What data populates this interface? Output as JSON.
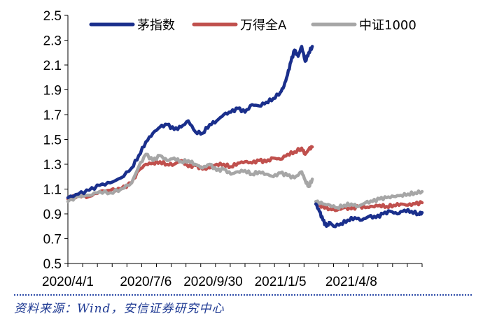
{
  "chart_data": {
    "type": "line",
    "title": "",
    "xlabel": "",
    "ylabel": "",
    "ylim": [
      0.5,
      2.5
    ],
    "yticks": [
      0.5,
      0.7,
      0.9,
      1.1,
      1.3,
      1.5,
      1.7,
      1.9,
      2.1,
      2.3,
      2.5
    ],
    "x_tick_labels": [
      "2020/4/1",
      "2020/7/6",
      "2020/9/30",
      "2021/1/5",
      "2021/4/8"
    ],
    "x_tick_positions": [
      0,
      0.22,
      0.41,
      0.6,
      0.8
    ],
    "legend_position": "top",
    "grid": false,
    "series": [
      {
        "name": "茅指数",
        "color": "#1a2f8c",
        "segments": [
          {
            "x": [
              0,
              0.03,
              0.06,
              0.09,
              0.12,
              0.15,
              0.18,
              0.2,
              0.22,
              0.24,
              0.26,
              0.28,
              0.3,
              0.32,
              0.34,
              0.36,
              0.38,
              0.4,
              0.42,
              0.44,
              0.46,
              0.48,
              0.5,
              0.52,
              0.54,
              0.56,
              0.58,
              0.6,
              0.61,
              0.62,
              0.63,
              0.64,
              0.65,
              0.66,
              0.67,
              0.68,
              0.69
            ],
            "y": [
              1.03,
              1.06,
              1.09,
              1.13,
              1.15,
              1.19,
              1.27,
              1.37,
              1.48,
              1.55,
              1.6,
              1.62,
              1.58,
              1.6,
              1.65,
              1.56,
              1.55,
              1.62,
              1.65,
              1.7,
              1.72,
              1.75,
              1.72,
              1.78,
              1.77,
              1.8,
              1.83,
              1.88,
              1.93,
              2.02,
              2.13,
              2.22,
              2.17,
              2.25,
              2.13,
              2.2,
              2.25
            ]
          },
          {
            "x": [
              0.7,
              0.71,
              0.72,
              0.73,
              0.74,
              0.75,
              0.77,
              0.79,
              0.81,
              0.83,
              0.85,
              0.87,
              0.89,
              0.91,
              0.93,
              0.95,
              0.97,
              0.99,
              1.0
            ],
            "y": [
              0.98,
              0.92,
              0.85,
              0.8,
              0.83,
              0.8,
              0.82,
              0.85,
              0.87,
              0.85,
              0.88,
              0.87,
              0.9,
              0.92,
              0.9,
              0.93,
              0.92,
              0.9,
              0.91
            ]
          }
        ]
      },
      {
        "name": "万得全A",
        "color": "#c0504d",
        "segments": [
          {
            "x": [
              0,
              0.03,
              0.06,
              0.09,
              0.12,
              0.15,
              0.18,
              0.2,
              0.22,
              0.24,
              0.26,
              0.28,
              0.3,
              0.32,
              0.34,
              0.36,
              0.38,
              0.4,
              0.42,
              0.44,
              0.46,
              0.48,
              0.5,
              0.52,
              0.54,
              0.56,
              0.58,
              0.6,
              0.62,
              0.64,
              0.66,
              0.67,
              0.68,
              0.69
            ],
            "y": [
              1.02,
              1.05,
              1.04,
              1.08,
              1.09,
              1.1,
              1.15,
              1.25,
              1.3,
              1.31,
              1.32,
              1.3,
              1.3,
              1.33,
              1.28,
              1.29,
              1.26,
              1.27,
              1.3,
              1.3,
              1.28,
              1.31,
              1.32,
              1.31,
              1.33,
              1.32,
              1.35,
              1.34,
              1.38,
              1.4,
              1.43,
              1.38,
              1.42,
              1.44
            ]
          },
          {
            "x": [
              0.7,
              0.72,
              0.74,
              0.76,
              0.78,
              0.8,
              0.82,
              0.84,
              0.86,
              0.88,
              0.9,
              0.92,
              0.94,
              0.96,
              0.98,
              1.0
            ],
            "y": [
              0.98,
              0.96,
              0.94,
              0.93,
              0.95,
              0.94,
              0.96,
              0.95,
              0.96,
              0.97,
              0.96,
              0.97,
              0.98,
              0.97,
              0.98,
              0.99
            ]
          }
        ]
      },
      {
        "name": "中证1000",
        "color": "#a6a6a6",
        "segments": [
          {
            "x": [
              0,
              0.03,
              0.06,
              0.09,
              0.12,
              0.15,
              0.18,
              0.2,
              0.22,
              0.24,
              0.26,
              0.28,
              0.3,
              0.32,
              0.34,
              0.36,
              0.38,
              0.4,
              0.42,
              0.44,
              0.46,
              0.48,
              0.5,
              0.52,
              0.54,
              0.56,
              0.58,
              0.6,
              0.62,
              0.64,
              0.66,
              0.67,
              0.68,
              0.69
            ],
            "y": [
              1.0,
              1.04,
              1.05,
              1.08,
              1.07,
              1.1,
              1.15,
              1.28,
              1.38,
              1.33,
              1.37,
              1.33,
              1.35,
              1.32,
              1.33,
              1.3,
              1.27,
              1.3,
              1.25,
              1.26,
              1.22,
              1.24,
              1.25,
              1.22,
              1.24,
              1.22,
              1.2,
              1.23,
              1.21,
              1.19,
              1.24,
              1.17,
              1.12,
              1.18
            ]
          },
          {
            "x": [
              0.7,
              0.72,
              0.74,
              0.76,
              0.78,
              0.8,
              0.82,
              0.84,
              0.86,
              0.88,
              0.9,
              0.92,
              0.94,
              0.96,
              0.98,
              1.0
            ],
            "y": [
              1.0,
              0.98,
              0.97,
              0.95,
              0.97,
              0.98,
              0.96,
              0.99,
              1.0,
              1.02,
              1.03,
              1.04,
              1.05,
              1.06,
              1.07,
              1.08
            ]
          }
        ]
      }
    ]
  },
  "source_text": "资料来源：Wind，安信证券研究中心"
}
